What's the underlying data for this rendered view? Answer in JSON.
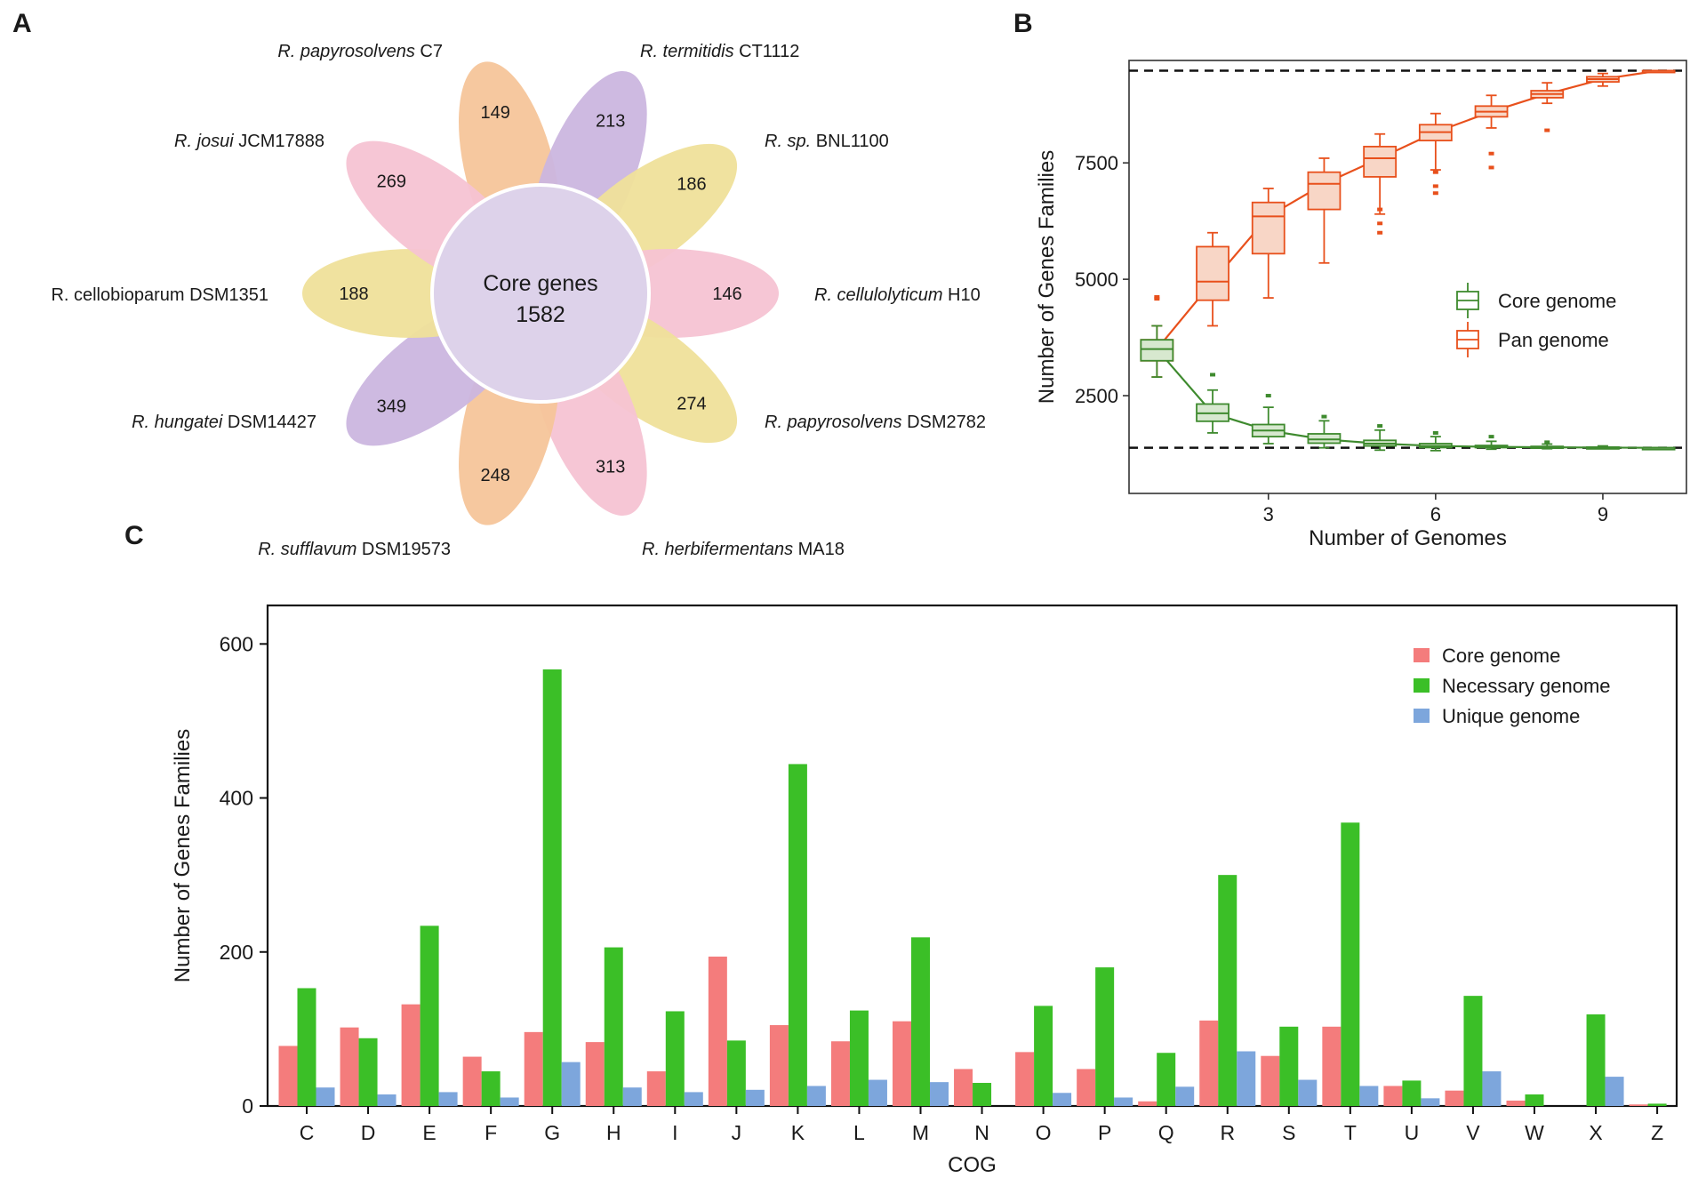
{
  "panels": {
    "a": "A",
    "b": "B",
    "c": "C"
  },
  "venn": {
    "center_title": "Core genes",
    "center_value": "1582",
    "petals": [
      {
        "italic": "R. papyrosolvens",
        "plain": " C7",
        "value": "149",
        "color": "#f6c59a"
      },
      {
        "italic": "R. termitidis",
        "plain": " CT1112",
        "value": "213",
        "color": "#cbb6df"
      },
      {
        "italic": "R. sp.",
        "plain": " BNL1100",
        "value": "186",
        "color": "#efe09a"
      },
      {
        "italic": "R. cellulolyticum",
        "plain": " H10",
        "value": "146",
        "color": "#f6c3d3"
      },
      {
        "italic": "R. papyrosolvens",
        "plain": " DSM2782",
        "value": "274",
        "color": "#efe09a"
      },
      {
        "italic": "R. herbifermentans",
        "plain": " MA18",
        "value": "313",
        "color": "#f6c3d3"
      },
      {
        "italic": "R. sufflavum",
        "plain": " DSM19573",
        "value": "248",
        "color": "#f6c59a"
      },
      {
        "italic": "R. hungatei",
        "plain": " DSM14427",
        "value": "349",
        "color": "#cbb6df"
      },
      {
        "italic": "",
        "plain": "R. cellobioparum DSM1351",
        "value": "188",
        "color": "#efe09a"
      },
      {
        "italic": "R. josui",
        "plain": " JCM17888",
        "value": "269",
        "color": "#f6c3d3"
      }
    ],
    "center_color": "#ddd2ea"
  },
  "chart_data": [
    {
      "type": "box",
      "title": "",
      "xlabel": "Number of Genomes",
      "ylabel": "Number of Genes Families",
      "xlim": [
        0.5,
        10.5
      ],
      "ylim": [
        400,
        9700
      ],
      "xticks": [
        3,
        6,
        9
      ],
      "yticks": [
        2500,
        5000,
        7500
      ],
      "hlines": [
        9480,
        1380
      ],
      "legend": [
        {
          "name": "Core genome",
          "color": "#3e8a2e"
        },
        {
          "name": "Pan genome",
          "color": "#e8501c"
        }
      ],
      "series": [
        {
          "name": "Pan genome",
          "color": "#e8501c",
          "fill": "#f8d6c6",
          "x": [
            1,
            2,
            3,
            4,
            5,
            6,
            7,
            8,
            9,
            10
          ],
          "median": [
            3500,
            4950,
            6350,
            7050,
            7600,
            8160,
            8600,
            8980,
            9300,
            9480
          ],
          "q1": [
            3250,
            4550,
            5550,
            6500,
            7200,
            7980,
            8490,
            8900,
            9240,
            9480
          ],
          "q3": [
            3700,
            5700,
            6650,
            7300,
            7850,
            8320,
            8720,
            9050,
            9350,
            9480
          ],
          "whisker_low": [
            2900,
            4000,
            4600,
            5350,
            6400,
            7350,
            8250,
            8780,
            9150,
            9480
          ],
          "whisker_high": [
            4000,
            6000,
            6950,
            7600,
            8120,
            8560,
            8950,
            9220,
            9420,
            9480
          ],
          "outliers": [
            [
              1,
              4580
            ],
            [
              1,
              4620
            ],
            [
              5,
              6000
            ],
            [
              5,
              6200
            ],
            [
              5,
              6500
            ],
            [
              6,
              6850
            ],
            [
              6,
              7000
            ],
            [
              6,
              7300
            ],
            [
              7,
              7400
            ],
            [
              7,
              7700
            ],
            [
              8,
              8200
            ]
          ]
        },
        {
          "name": "Core genome",
          "color": "#3e8a2e",
          "fill": "#d7e8cf",
          "x": [
            1,
            2,
            3,
            4,
            5,
            6,
            7,
            8,
            9,
            10
          ],
          "median": [
            3500,
            2120,
            1750,
            1560,
            1470,
            1420,
            1400,
            1390,
            1385,
            1380
          ],
          "q1": [
            3250,
            1950,
            1620,
            1480,
            1420,
            1385,
            1385,
            1380,
            1380,
            1380
          ],
          "q3": [
            3700,
            2320,
            1880,
            1680,
            1540,
            1470,
            1430,
            1410,
            1395,
            1380
          ],
          "whisker_low": [
            2900,
            1700,
            1470,
            1380,
            1330,
            1320,
            1350,
            1360,
            1370,
            1380
          ],
          "whisker_high": [
            4000,
            2620,
            2250,
            1960,
            1760,
            1620,
            1520,
            1460,
            1420,
            1380
          ],
          "outliers": [
            [
              2,
              2950
            ],
            [
              3,
              2500
            ],
            [
              4,
              2050
            ],
            [
              5,
              1850
            ],
            [
              6,
              1700
            ],
            [
              7,
              1620
            ],
            [
              8,
              1500
            ]
          ]
        }
      ]
    },
    {
      "type": "bar",
      "title": "",
      "xlabel": "COG",
      "ylabel": "Number of Genes Families",
      "ylim": [
        0,
        650
      ],
      "yticks": [
        0,
        200,
        400,
        600
      ],
      "categories": [
        "C",
        "D",
        "E",
        "F",
        "G",
        "H",
        "I",
        "J",
        "K",
        "L",
        "M",
        "N",
        "O",
        "P",
        "Q",
        "R",
        "S",
        "T",
        "U",
        "V",
        "W",
        "X",
        "Z"
      ],
      "series": [
        {
          "name": "Core genome",
          "color": "#f47c7c",
          "values": [
            78,
            102,
            132,
            64,
            96,
            83,
            45,
            194,
            105,
            84,
            110,
            48,
            70,
            48,
            6,
            111,
            65,
            103,
            26,
            20,
            7,
            0,
            2
          ]
        },
        {
          "name": "Necessary genome",
          "color": "#3bbf27",
          "values": [
            153,
            88,
            234,
            45,
            567,
            206,
            123,
            85,
            444,
            124,
            219,
            30,
            130,
            180,
            69,
            300,
            103,
            368,
            33,
            143,
            15,
            119,
            3
          ]
        },
        {
          "name": "Unique genome",
          "color": "#7da6dc",
          "values": [
            24,
            15,
            18,
            11,
            57,
            24,
            18,
            21,
            26,
            34,
            31,
            0,
            17,
            11,
            25,
            71,
            34,
            26,
            10,
            45,
            0,
            38,
            0
          ]
        }
      ]
    }
  ]
}
